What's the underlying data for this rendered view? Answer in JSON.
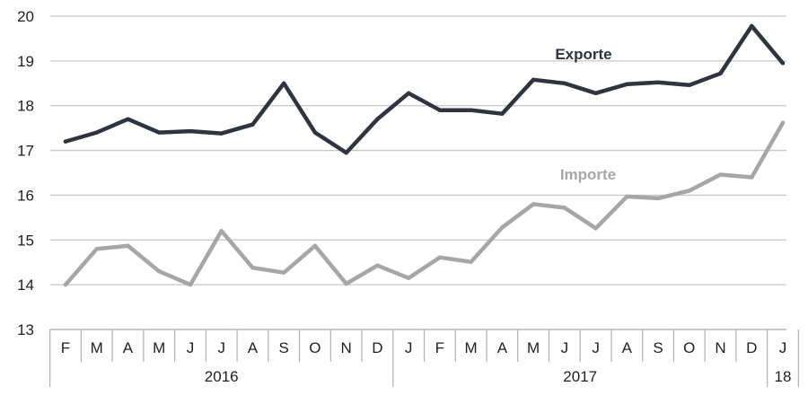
{
  "chart_data": {
    "type": "line",
    "title": "",
    "xlabel": "",
    "ylabel": "",
    "ylim": [
      13,
      20
    ],
    "yticks": [
      "13",
      "14",
      "15",
      "16",
      "17",
      "18",
      "19",
      "20"
    ],
    "grid": true,
    "months": [
      "F",
      "M",
      "A",
      "M",
      "J",
      "J",
      "A",
      "S",
      "O",
      "N",
      "D",
      "J",
      "F",
      "M",
      "A",
      "M",
      "J",
      "J",
      "A",
      "S",
      "O",
      "N",
      "D",
      "J"
    ],
    "year_groups": [
      {
        "label": "2016",
        "span": 11
      },
      {
        "label": "2017",
        "span": 12
      },
      {
        "label": "18",
        "span": 1
      }
    ],
    "series": [
      {
        "name": "Exporte",
        "color": "#2e3440",
        "values": [
          17.2,
          17.4,
          17.7,
          17.4,
          17.43,
          17.38,
          17.58,
          18.5,
          17.4,
          16.95,
          17.7,
          18.28,
          17.9,
          17.9,
          17.82,
          18.58,
          18.5,
          18.28,
          18.48,
          18.52,
          18.46,
          18.72,
          19.78,
          18.95
        ]
      },
      {
        "name": "Importe",
        "color": "#a6a6a6",
        "values": [
          14.0,
          14.8,
          14.87,
          14.3,
          14.0,
          15.2,
          14.38,
          14.27,
          14.87,
          14.02,
          14.43,
          14.15,
          14.61,
          14.51,
          15.28,
          15.8,
          15.72,
          15.26,
          15.97,
          15.93,
          16.1,
          16.46,
          16.4,
          17.62
        ]
      }
    ]
  }
}
